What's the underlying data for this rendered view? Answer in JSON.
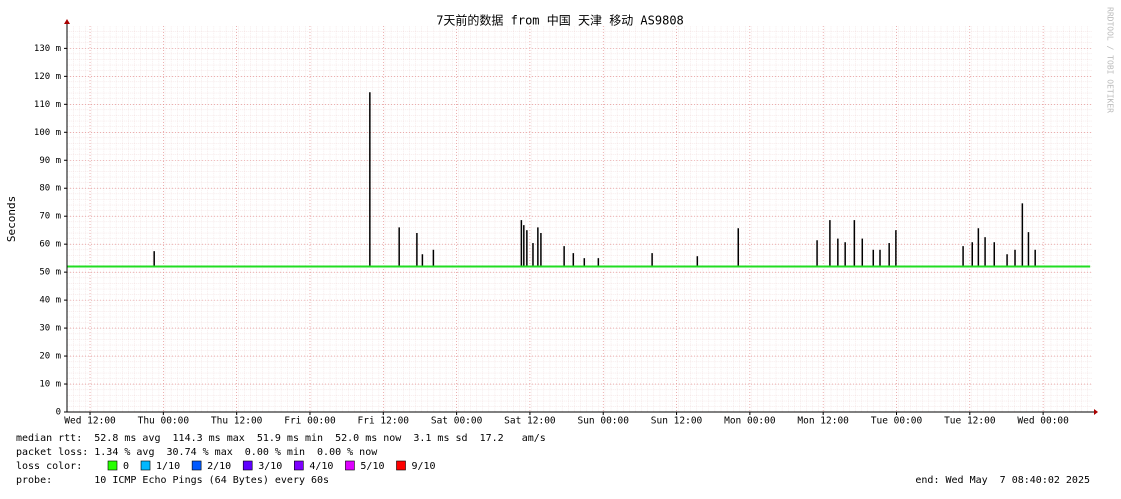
{
  "chart_data": {
    "type": "smokeping",
    "title": "7天前的数据 from 中国 天津 移动 AS9808",
    "y_label": "Seconds",
    "side_note": "RRDTOOL / TOBI OETIKER",
    "ylim": [
      0,
      138
    ],
    "yticks": [
      0,
      {
        "value": 10,
        "label": "10 m"
      },
      {
        "value": 20,
        "label": "20 m"
      },
      {
        "value": 30,
        "label": "30 m"
      },
      {
        "value": 40,
        "label": "40 m"
      },
      {
        "value": 50,
        "label": "50 m"
      },
      {
        "value": 60,
        "label": "60 m"
      },
      {
        "value": 70,
        "label": "70 m"
      },
      {
        "value": 80,
        "label": "80 m"
      },
      {
        "value": 90,
        "label": "90 m"
      },
      {
        "value": 100,
        "label": "100 m"
      },
      {
        "value": 110,
        "label": "110 m"
      },
      {
        "value": 120,
        "label": "120 m"
      },
      {
        "value": 130,
        "label": "130 m"
      }
    ],
    "xlim": [
      -3.77,
      164.0
    ],
    "xticks": [
      {
        "value": 0,
        "label": "Wed 12:00"
      },
      {
        "value": 12,
        "label": "Thu 00:00"
      },
      {
        "value": 24,
        "label": "Thu 12:00"
      },
      {
        "value": 36,
        "label": "Fri 00:00"
      },
      {
        "value": 48,
        "label": "Fri 12:00"
      },
      {
        "value": 60,
        "label": "Sat 00:00"
      },
      {
        "value": 72,
        "label": "Sat 12:00"
      },
      {
        "value": 84,
        "label": "Sun 00:00"
      },
      {
        "value": 96,
        "label": "Sun 12:00"
      },
      {
        "value": 108,
        "label": "Mon 00:00"
      },
      {
        "value": 120,
        "label": "Mon 12:00"
      },
      {
        "value": 132,
        "label": "Tue 00:00"
      },
      {
        "value": 144,
        "label": "Tue 12:00"
      },
      {
        "value": 156,
        "label": "Wed 00:00"
      }
    ],
    "grid": true,
    "median": {
      "color": "#22dd22",
      "x": [
        -3.7,
        163.7
      ],
      "values": [
        52,
        52
      ]
    },
    "spikes": {
      "color": "#000000",
      "x": [
        10.5,
        45.8,
        50.6,
        53.5,
        54.4,
        56.2,
        70.6,
        71.0,
        71.5,
        72.5,
        73.3,
        73.8,
        77.6,
        79.1,
        80.9,
        83.2,
        92.0,
        99.4,
        106.1,
        119.0,
        121.1,
        122.4,
        123.6,
        125.1,
        126.4,
        128.2,
        129.3,
        130.8,
        131.9,
        142.9,
        144.4,
        145.4,
        146.5,
        148.0,
        150.1,
        151.4,
        152.6,
        153.6,
        154.7
      ],
      "values": [
        57.5,
        114.3,
        66,
        64,
        56.4,
        58,
        68.6,
        66.8,
        65,
        60.4,
        66,
        64,
        59.3,
        56.8,
        55,
        55,
        56.8,
        55.7,
        65.7,
        61.4,
        68.6,
        62,
        60.7,
        68.6,
        62,
        58,
        58,
        60.4,
        65,
        59.3,
        60.7,
        65.7,
        62.5,
        60.7,
        56.4,
        58,
        74.6,
        64.3,
        58
      ]
    },
    "stats": [
      "median rtt:  52.8 ms avg  114.3 ms max  51.9 ms min  52.0 ms now  3.1 ms sd  17.2   am/s",
      "packet loss: 1.34 % avg  30.74 % max  0.00 % min  0.00 % now"
    ],
    "loss_color_label": "loss color:",
    "loss_legend": [
      {
        "name": "0",
        "color": "#26ff00"
      },
      {
        "name": "1/10",
        "color": "#00b8ff"
      },
      {
        "name": "2/10",
        "color": "#0059ff"
      },
      {
        "name": "3/10",
        "color": "#5e00ff"
      },
      {
        "name": "4/10",
        "color": "#7e00ff"
      },
      {
        "name": "5/10",
        "color": "#dd00ff"
      },
      {
        "name": "9/10",
        "color": "#ff0000"
      }
    ],
    "probe": "probe:       10 ICMP Echo Pings (64 Bytes) every 60s",
    "end": "end: Wed May  7 08:40:02 2025"
  }
}
